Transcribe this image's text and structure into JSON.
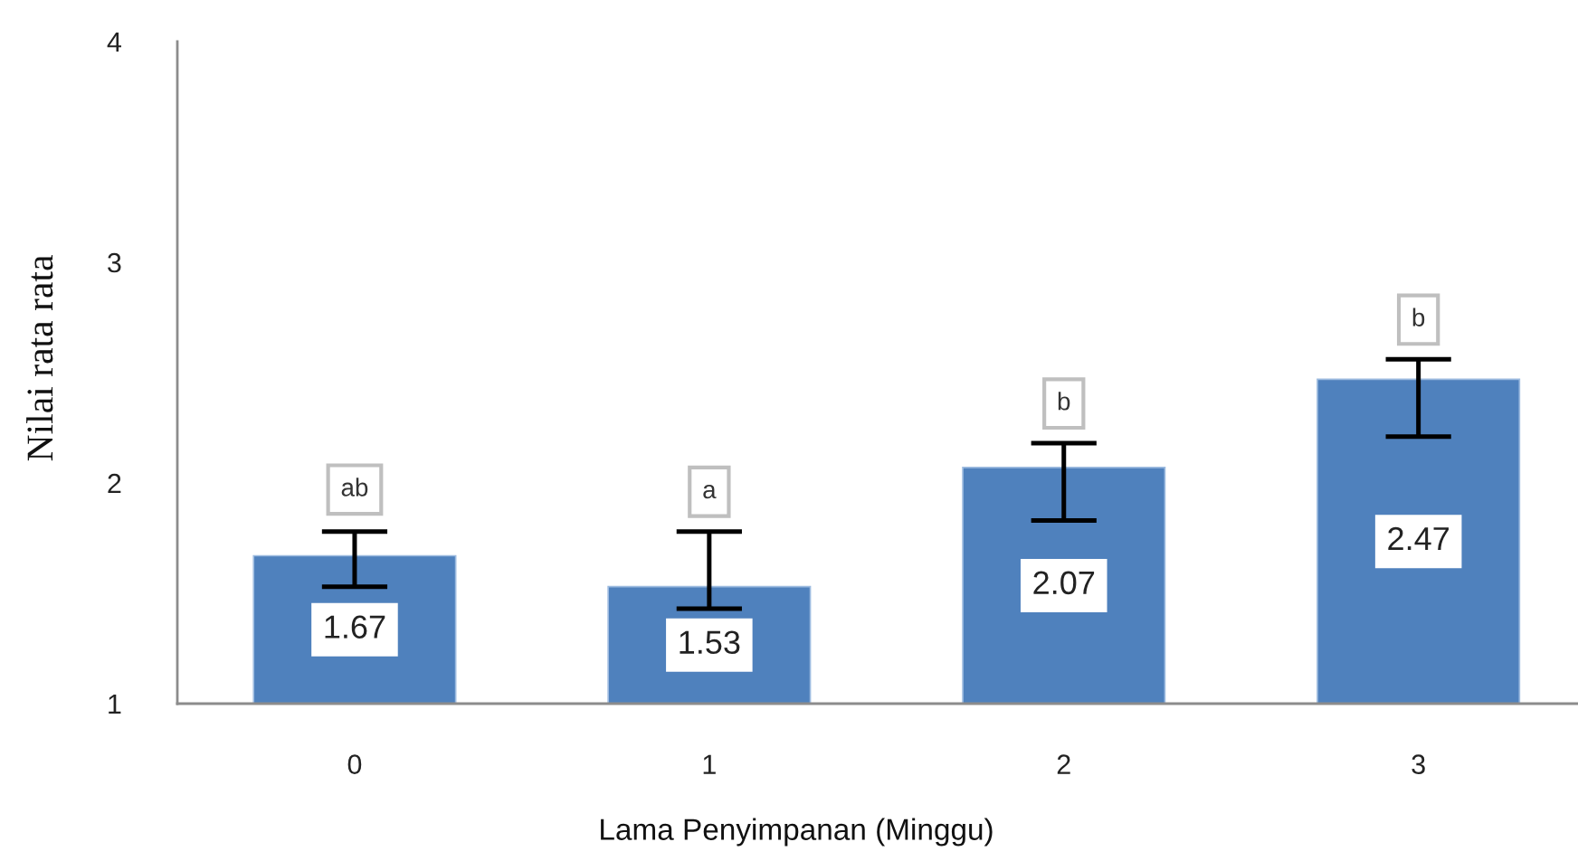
{
  "chart_data": {
    "type": "bar",
    "xlabel": "Lama Penyimpanan (Minggu)",
    "ylabel": "Nilai rata rata",
    "categories": [
      "0",
      "1",
      "2",
      "3"
    ],
    "values": [
      1.67,
      1.53,
      2.07,
      2.47
    ],
    "color": "#4f81bd",
    "errors": [
      [
        1.53,
        1.78
      ],
      [
        1.43,
        1.78
      ],
      [
        1.83,
        2.18
      ],
      [
        2.21,
        2.56
      ]
    ],
    "ylim": [
      1,
      4
    ],
    "yticks": [
      1,
      2,
      3,
      4
    ],
    "grid": false,
    "data_labels": true,
    "annotations": [
      {
        "text": "ab",
        "x": "0",
        "y": 1.97
      },
      {
        "text": "a",
        "x": "1",
        "y": 1.96
      },
      {
        "text": "b",
        "x": "2",
        "y": 2.36
      },
      {
        "text": "b",
        "x": "3",
        "y": 2.74
      }
    ]
  }
}
